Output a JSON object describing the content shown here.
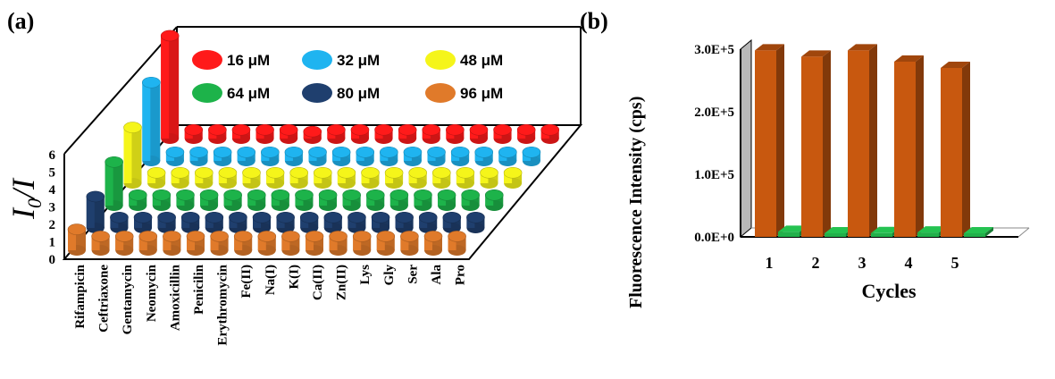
{
  "panel_a": {
    "label": "(a)",
    "ylabel_main": "I",
    "ylabel_sub": "0",
    "ylabel_tail": "/I"
  },
  "panel_b": {
    "label": "(b)"
  },
  "colors": {
    "16": "#ff1a1a",
    "32": "#1fb4f0",
    "48": "#f5f51a",
    "64": "#1db34a",
    "80": "#1f3f6e",
    "96": "#e07a2a",
    "bar_b_on": "#c8580f",
    "bar_b_off": "#22b04a",
    "wall": "#b8b8b8"
  },
  "chart_data": [
    {
      "type": "bar",
      "title": "",
      "xlabel": "",
      "ylabel": "I0/I",
      "ylim": [
        0,
        6
      ],
      "yticks": [
        "0",
        "1",
        "2",
        "3",
        "4",
        "5",
        "6"
      ],
      "categories": [
        "Rifampicin",
        "Ceftriaxone",
        "Gentamycin",
        "Neomycin",
        "Amoxicillin",
        "Penicilin",
        "Erythromycin",
        "Fe(II)",
        "Na(I)",
        "K(I)",
        "Ca(II)",
        "Zn(II)",
        "Lys",
        "Gly",
        "Ser",
        "Ala",
        "Pro"
      ],
      "series": [
        {
          "name": "16 μM",
          "color_key": "16",
          "values": [
            5.9,
            0.5,
            0.5,
            0.5,
            0.5,
            0.5,
            0.4,
            0.5,
            0.5,
            0.5,
            0.5,
            0.5,
            0.5,
            0.5,
            0.5,
            0.5,
            0.5
          ]
        },
        {
          "name": "32 μM",
          "color_key": "32",
          "values": [
            4.5,
            0.5,
            0.5,
            0.5,
            0.5,
            0.5,
            0.5,
            0.5,
            0.5,
            0.5,
            0.5,
            0.5,
            0.5,
            0.5,
            0.5,
            0.5,
            0.5
          ]
        },
        {
          "name": "48 μM",
          "color_key": "48",
          "values": [
            3.2,
            0.6,
            0.6,
            0.6,
            0.6,
            0.6,
            0.6,
            0.6,
            0.6,
            0.6,
            0.6,
            0.6,
            0.6,
            0.6,
            0.6,
            0.6,
            0.6
          ]
        },
        {
          "name": "64 μM",
          "color_key": "64",
          "values": [
            2.5,
            0.6,
            0.6,
            0.6,
            0.6,
            0.6,
            0.6,
            0.6,
            0.6,
            0.6,
            0.6,
            0.6,
            0.6,
            0.6,
            0.6,
            0.6,
            0.6
          ]
        },
        {
          "name": "80 μM",
          "color_key": "80",
          "values": [
            1.8,
            0.6,
            0.6,
            0.6,
            0.6,
            0.6,
            0.6,
            0.6,
            0.6,
            0.6,
            0.6,
            0.6,
            0.6,
            0.6,
            0.6,
            0.6,
            0.6
          ]
        },
        {
          "name": "96 μM",
          "color_key": "96",
          "values": [
            1.2,
            0.8,
            0.8,
            0.8,
            0.8,
            0.8,
            0.8,
            0.8,
            0.8,
            0.8,
            0.8,
            0.8,
            0.8,
            0.8,
            0.8,
            0.8,
            0.8
          ]
        }
      ],
      "legend_position": "top-right",
      "grid": false
    },
    {
      "type": "bar",
      "title": "",
      "xlabel": "Cycles",
      "ylabel": "Fluorescence Intensity (cps)",
      "ylim": [
        0,
        300000
      ],
      "yticks": [
        "0.0E+0",
        "1.0E+5",
        "2.0E+5",
        "3.0E+5"
      ],
      "categories": [
        "1",
        "2",
        "3",
        "4",
        "5"
      ],
      "series": [
        {
          "color_key": "bar_b_on",
          "values": [
            298000,
            288000,
            298000,
            280000,
            270000
          ]
        },
        {
          "color_key": "bar_b_off",
          "values": [
            8000,
            5000,
            6000,
            7000,
            5000
          ]
        }
      ],
      "grid": false
    }
  ]
}
